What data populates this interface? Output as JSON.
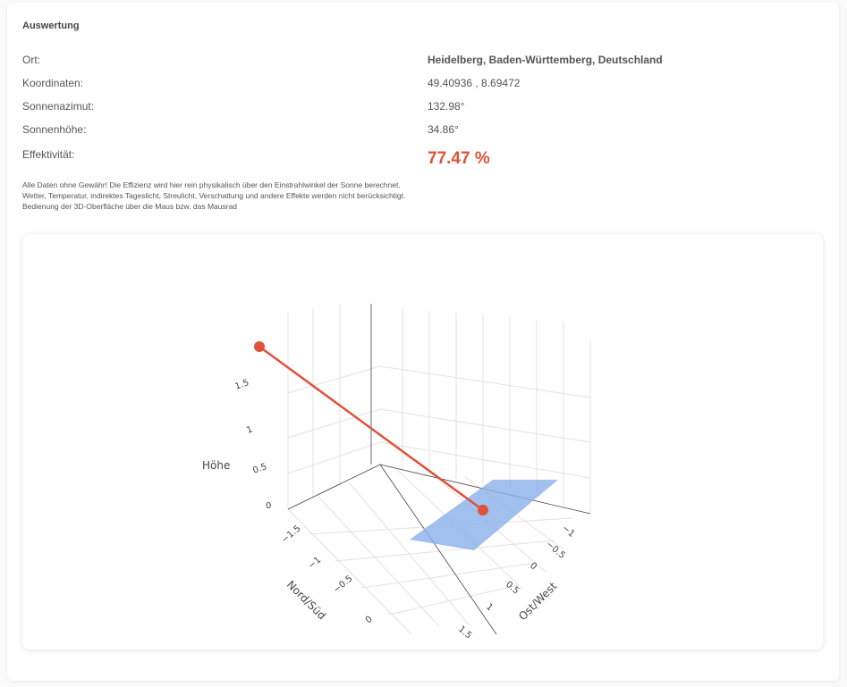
{
  "header": {
    "title": "Auswertung"
  },
  "rows": [
    {
      "label": "Ort:",
      "value": "Heidelberg, Baden-Württemberg, Deutschland"
    },
    {
      "label": "Koordinaten:",
      "value": "49.40936 , 8.69472"
    },
    {
      "label": "Sonnenazimut:",
      "value": "132.98°"
    },
    {
      "label": "Sonnenhöhe:",
      "value": "34.86°"
    },
    {
      "label": "Effektivität:",
      "value": "77.47 %"
    }
  ],
  "notes": [
    "Alle Daten ohne Gewähr! Die Effizienz wird hier rein physikalisch über den Einstrahlwinkel der Sonne berechnet.",
    "Wetter, Temperatur, indirektes Tageslicht, Streulicht, Verschattung und andere Effekte werden nicht berücksichtigt.",
    "Bedienung der 3D-Oberfläche über die Maus bzw. das Mausrad"
  ],
  "plot": {
    "z_title": "Höhe",
    "z_ticks": [
      "1.5",
      "1",
      "0.5",
      "0"
    ],
    "y_title": "Nord/Süd",
    "y_ticks": [
      "−1.5",
      "−1",
      "−0.5",
      "0"
    ],
    "x_title": "Ost/West",
    "x_ticks": [
      "−1",
      "−0.5",
      "0",
      "0.5",
      "1",
      "1.5"
    ]
  }
}
